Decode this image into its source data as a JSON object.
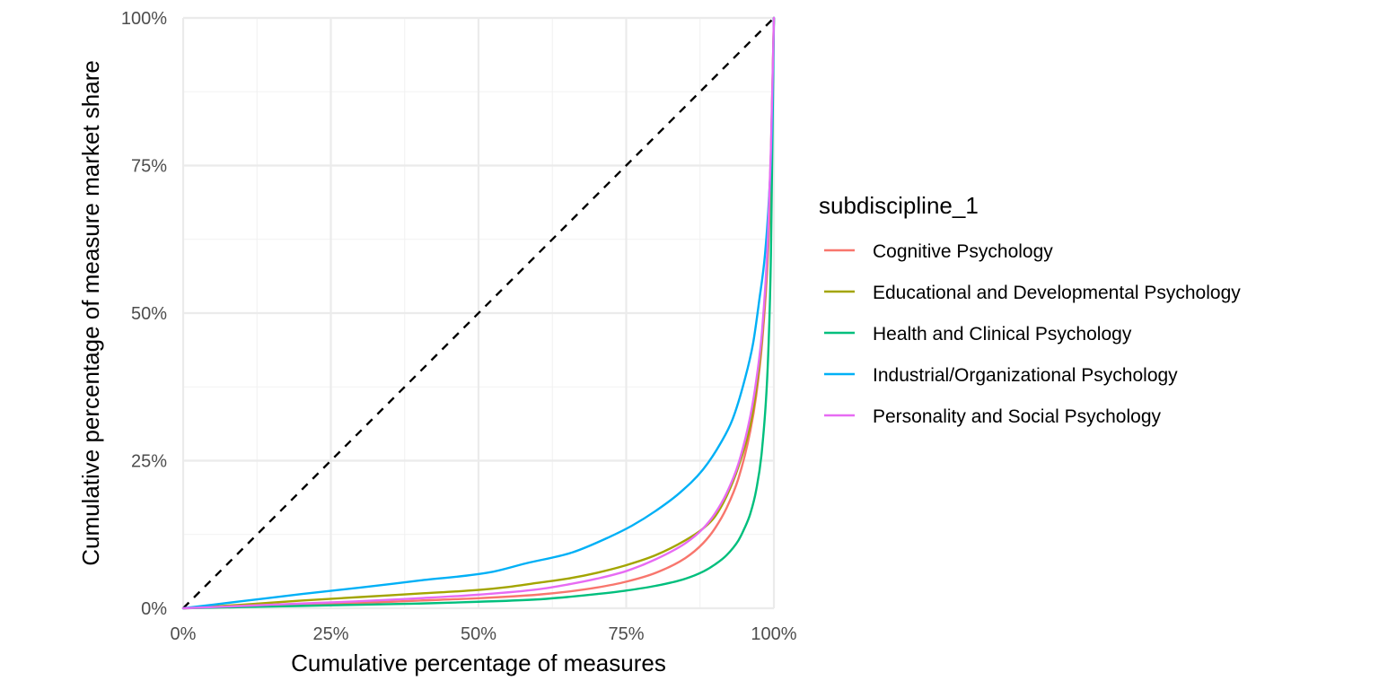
{
  "chart_data": {
    "type": "line",
    "title": "",
    "xlabel": "Cumulative percentage of measures",
    "ylabel": "Cumulative percentage of measure market share",
    "xlim": [
      0,
      100
    ],
    "ylim": [
      0,
      100
    ],
    "x_ticks": [
      "0%",
      "25%",
      "50%",
      "75%",
      "100%"
    ],
    "y_ticks": [
      "0%",
      "25%",
      "50%",
      "75%",
      "100%"
    ],
    "grid": true,
    "legend": {
      "title": "subdiscipline_1",
      "placement": "right"
    },
    "reference_line": {
      "style": "dashed",
      "color": "#000000",
      "x": [
        0,
        100
      ],
      "y": [
        0,
        100
      ]
    },
    "series": [
      {
        "name": "Cognitive Psychology",
        "color": "#F8766D",
        "x": [
          0,
          10,
          20,
          30,
          40,
          50,
          60,
          65,
          70,
          75,
          80,
          85,
          88,
          90,
          92,
          94,
          96,
          97,
          98,
          99,
          99.5,
          100
        ],
        "y": [
          0,
          0.3,
          0.6,
          0.9,
          1.3,
          1.7,
          2.3,
          2.8,
          3.5,
          4.5,
          6.0,
          8.5,
          11.0,
          13.5,
          17.0,
          22.0,
          30.0,
          36.0,
          45.0,
          60.0,
          75.0,
          100
        ]
      },
      {
        "name": "Educational and Developmental Psychology",
        "color": "#A3A500",
        "x": [
          0,
          10,
          20,
          30,
          40,
          50,
          55,
          60,
          65,
          70,
          75,
          80,
          85,
          88,
          90,
          92,
          94,
          96,
          97,
          98,
          99,
          99.5,
          100
        ],
        "y": [
          0,
          0.6,
          1.3,
          1.9,
          2.5,
          3.1,
          3.6,
          4.3,
          5.0,
          6.0,
          7.3,
          9.0,
          11.5,
          13.5,
          15.5,
          19.0,
          24.0,
          31.0,
          37.0,
          46.0,
          62.0,
          77.0,
          100
        ]
      },
      {
        "name": "Health and Clinical Psychology",
        "color": "#00BF7D",
        "x": [
          0,
          10,
          20,
          30,
          40,
          50,
          60,
          65,
          70,
          75,
          80,
          85,
          88,
          90,
          92,
          94,
          95,
          96,
          97,
          98,
          99,
          99.5,
          100
        ],
        "y": [
          0,
          0.2,
          0.4,
          0.6,
          0.8,
          1.1,
          1.5,
          1.9,
          2.4,
          3.0,
          3.8,
          5.0,
          6.2,
          7.4,
          9.0,
          11.5,
          13.5,
          16.0,
          20.0,
          27.0,
          42.0,
          60.0,
          100
        ]
      },
      {
        "name": "Industrial/Organizational Psychology",
        "color": "#00B0F6",
        "x": [
          0,
          10,
          20,
          30,
          40,
          52,
          58,
          66,
          72,
          76,
          80,
          84,
          88,
          91,
          93,
          95,
          96.5,
          97.5,
          98.5,
          99.2,
          99.7,
          100
        ],
        "y": [
          0,
          1.2,
          2.4,
          3.5,
          4.7,
          6.1,
          7.6,
          9.5,
          12.0,
          14.0,
          16.5,
          19.5,
          23.5,
          28.0,
          32.0,
          38.5,
          45.0,
          52.0,
          60.0,
          70.0,
          82.0,
          100
        ]
      },
      {
        "name": "Personality and Social Psychology",
        "color": "#E76BF3",
        "x": [
          0,
          10,
          20,
          30,
          40,
          50,
          60,
          65,
          70,
          75,
          80,
          85,
          88,
          90,
          92,
          94,
          96,
          97,
          98,
          99,
          99.5,
          100
        ],
        "y": [
          0,
          0.4,
          0.8,
          1.2,
          1.7,
          2.3,
          3.2,
          4.0,
          5.0,
          6.3,
          8.3,
          11.0,
          13.5,
          16.0,
          19.5,
          24.5,
          32.5,
          38.5,
          47.0,
          63.0,
          78.0,
          100
        ]
      }
    ]
  }
}
